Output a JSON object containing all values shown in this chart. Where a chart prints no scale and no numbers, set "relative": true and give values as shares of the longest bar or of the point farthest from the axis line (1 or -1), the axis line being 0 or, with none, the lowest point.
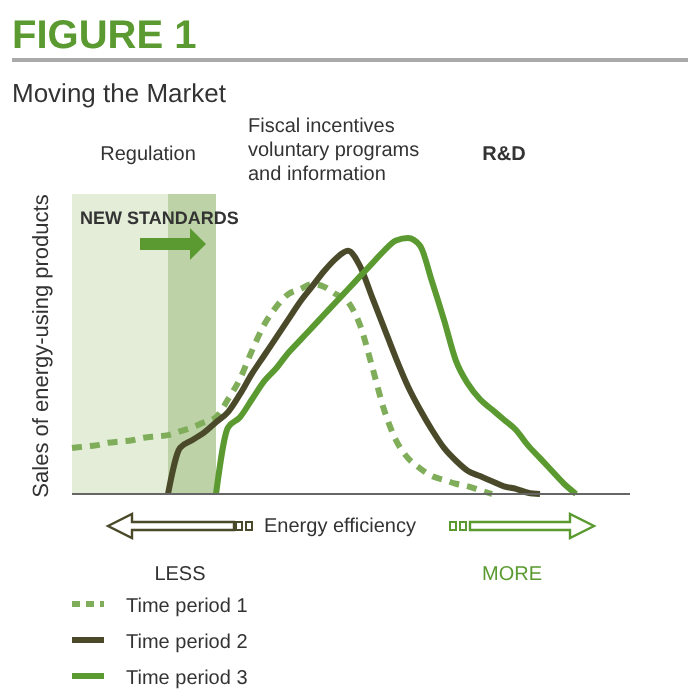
{
  "chart_data": {
    "type": "line",
    "title": "FIGURE 1",
    "subtitle": "Moving the Market",
    "xlabel": "Energy efficiency",
    "ylabel": "Sales of energy-using products",
    "annotations": [
      "Regulation",
      "Fiscal incentives\nvoluntary programs\nand information",
      "R&D",
      "NEW STANDARDS",
      "LESS",
      "MORE"
    ],
    "relative": true,
    "legend": "bottom left",
    "marker": "none",
    "categories": [
      null,
      null,
      null,
      null,
      null,
      null,
      null,
      null,
      null,
      null,
      null,
      null,
      null,
      null,
      null,
      null,
      null,
      null,
      null,
      null,
      null,
      null,
      null,
      null,
      null,
      null,
      null,
      null,
      null,
      null,
      null,
      null,
      null,
      null,
      null,
      null,
      null,
      null,
      null,
      null,
      null,
      null,
      null
    ],
    "series": [
      {
        "name": "Time period 1",
        "color": "#7fad5a",
        "line_style": "dashed",
        "values": [
          0.18,
          0.185,
          0.19,
          0.2,
          0.205,
          0.21,
          0.22,
          0.225,
          0.23,
          0.245,
          0.26,
          0.28,
          0.3,
          0.37,
          0.45,
          0.56,
          0.66,
          0.73,
          0.78,
          0.8,
          0.82,
          0.81,
          0.78,
          0.75,
          0.66,
          0.5,
          0.33,
          0.21,
          0.14,
          0.1,
          0.07,
          0.055,
          0.04,
          0.03,
          0.015,
          0,
          null,
          null,
          null,
          null,
          null,
          null,
          null
        ]
      },
      {
        "name": "Time period 2",
        "color": "#4a4a2a",
        "line_style": "solid",
        "values": [
          null,
          null,
          null,
          null,
          null,
          null,
          null,
          null,
          0,
          0.18,
          0.21,
          0.24,
          0.28,
          0.32,
          0.39,
          0.47,
          0.54,
          0.61,
          0.68,
          0.75,
          0.81,
          0.87,
          0.92,
          0.95,
          0.89,
          0.77,
          0.65,
          0.53,
          0.42,
          0.33,
          0.25,
          0.18,
          0.13,
          0.09,
          0.07,
          0.05,
          0.03,
          0.02,
          0.005,
          0,
          null,
          null,
          null
        ]
      },
      {
        "name": "Time period 3",
        "color": "#5a9a30",
        "line_style": "solid",
        "values": [
          null,
          null,
          null,
          null,
          null,
          null,
          null,
          null,
          null,
          null,
          null,
          null,
          0,
          0.26,
          0.3,
          0.37,
          0.44,
          0.49,
          0.55,
          0.6,
          0.65,
          0.7,
          0.75,
          0.8,
          0.85,
          0.9,
          0.95,
          0.99,
          1,
          0.97,
          0.83,
          0.68,
          0.52,
          0.43,
          0.37,
          0.33,
          0.29,
          0.25,
          0.19,
          0.14,
          0.09,
          0.04,
          0
        ]
      }
    ]
  }
}
